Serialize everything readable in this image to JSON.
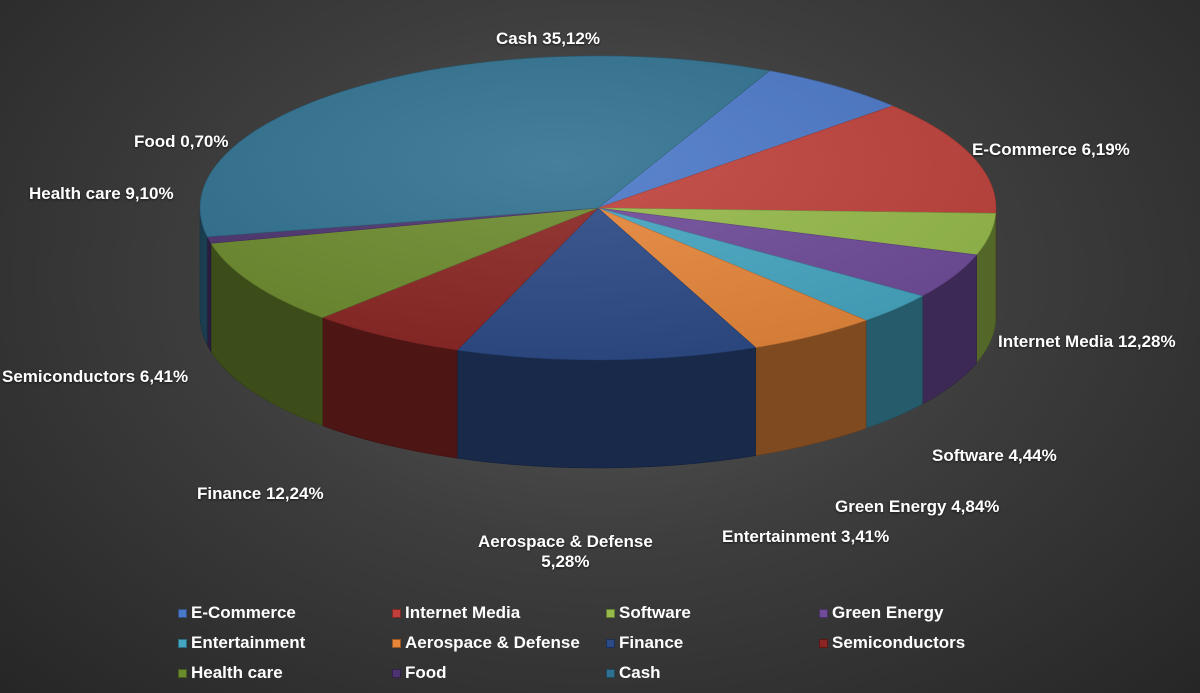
{
  "chart_data": {
    "type": "pie",
    "title": "",
    "legend_position": "bottom",
    "slices": [
      {
        "name": "E-Commerce",
        "label": "E-Commerce 6,19%",
        "value": 6.19,
        "color": "#4a78c8"
      },
      {
        "name": "Internet Media",
        "label": "Internet Media 12,28%",
        "value": 12.28,
        "color": "#c0413b"
      },
      {
        "name": "Software",
        "label": "Software 4,44%",
        "value": 4.44,
        "color": "#96bb4a"
      },
      {
        "name": "Green Energy",
        "label": "Green Energy 4,84%",
        "value": 4.84,
        "color": "#6f4b9a"
      },
      {
        "name": "Entertainment",
        "label": "Entertainment 3,41%",
        "value": 3.41,
        "color": "#45a6c2"
      },
      {
        "name": "Aerospace & Defense",
        "label_lines": [
          "Aerospace & Defense",
          "5,28%"
        ],
        "value": 5.28,
        "color": "#e8873a"
      },
      {
        "name": "Finance",
        "label": "Finance 12,24%",
        "value": 12.24,
        "color": "#2b4a86"
      },
      {
        "name": "Semiconductors",
        "label": "Semiconductors 6,41%",
        "value": 6.41,
        "color": "#8c2624"
      },
      {
        "name": "Health care",
        "label": "Health care 9,10%",
        "value": 9.1,
        "color": "#6d8c2e"
      },
      {
        "name": "Food",
        "label": "Food 0,70%",
        "value": 0.7,
        "color": "#4d3470"
      },
      {
        "name": "Cash",
        "label": "Cash 35,12%",
        "value": 35.12,
        "color": "#2f7190"
      }
    ]
  }
}
